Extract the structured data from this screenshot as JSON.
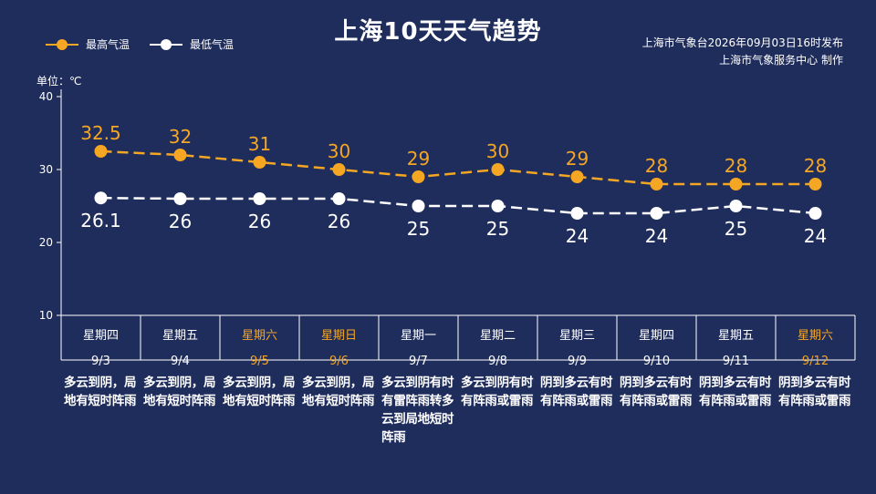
{
  "title": "上海10天天气趋势",
  "legend": {
    "high": "最高气温",
    "low": "最低气温"
  },
  "publisher": {
    "line1": "上海市气象台2026年09月03日16时发布",
    "line2": "上海市气象服务中心 制作"
  },
  "unit_label": "单位：℃",
  "colors": {
    "background": "#1f2d5c",
    "high": "#f5a623",
    "low": "#ffffff",
    "weekend": "#f5a623",
    "weekday": "#ffffff"
  },
  "chart_data": {
    "type": "line",
    "categories": [
      "9/3",
      "9/4",
      "9/5",
      "9/6",
      "9/7",
      "9/8",
      "9/9",
      "9/10",
      "9/11",
      "9/12"
    ],
    "series": [
      {
        "name": "最高气温",
        "values": [
          32.5,
          32,
          31,
          30,
          29,
          30,
          29,
          28,
          28,
          28
        ],
        "labels": [
          "32.5",
          "32",
          "31",
          "30",
          "29",
          "30",
          "29",
          "28",
          "28",
          "28"
        ]
      },
      {
        "name": "最低气温",
        "values": [
          26.1,
          26,
          26,
          26,
          25,
          25,
          24,
          24,
          25,
          24
        ],
        "labels": [
          "26.1",
          "26",
          "26",
          "26",
          "25",
          "25",
          "24",
          "24",
          "25",
          "24"
        ]
      }
    ],
    "yticks": [
      "40",
      "30",
      "20",
      "10"
    ],
    "ylim": [
      10,
      40
    ],
    "line_style": "dashed",
    "grid": false
  },
  "days": [
    {
      "weekday": "星期四",
      "date": "9/3",
      "weekend": false,
      "desc": "多云到阴，局地有短时阵雨"
    },
    {
      "weekday": "星期五",
      "date": "9/4",
      "weekend": false,
      "desc": "多云到阴，局地有短时阵雨"
    },
    {
      "weekday": "星期六",
      "date": "9/5",
      "weekend": true,
      "desc": "多云到阴，局地有短时阵雨"
    },
    {
      "weekday": "星期日",
      "date": "9/6",
      "weekend": true,
      "desc": "多云到阴，局地有短时阵雨"
    },
    {
      "weekday": "星期一",
      "date": "9/7",
      "weekend": false,
      "desc": "多云到阴有时有雷阵雨转多云到局地短时阵雨"
    },
    {
      "weekday": "星期二",
      "date": "9/8",
      "weekend": false,
      "desc": "多云到阴有时有阵雨或雷雨"
    },
    {
      "weekday": "星期三",
      "date": "9/9",
      "weekend": false,
      "desc": "阴到多云有时有阵雨或雷雨"
    },
    {
      "weekday": "星期四",
      "date": "9/10",
      "weekend": false,
      "desc": "阴到多云有时有阵雨或雷雨"
    },
    {
      "weekday": "星期五",
      "date": "9/11",
      "weekend": false,
      "desc": "阴到多云有时有阵雨或雷雨"
    },
    {
      "weekday": "星期六",
      "date": "9/12",
      "weekend": true,
      "desc": "阴到多云有时有阵雨或雷雨"
    }
  ]
}
